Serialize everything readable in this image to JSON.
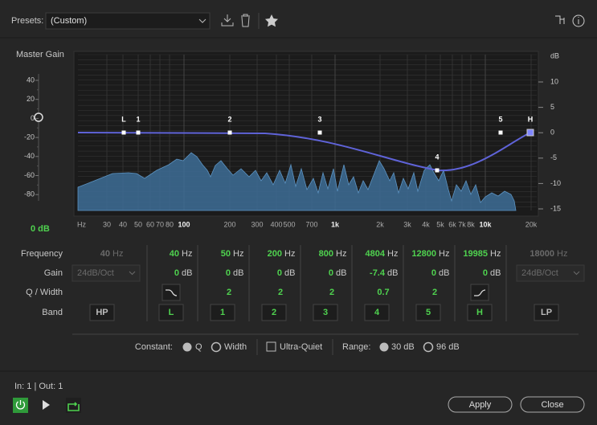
{
  "toolbar": {
    "presets_label": "Presets:",
    "preset": "(Custom)"
  },
  "master_gain": {
    "label": "Master Gain",
    "ticks": [
      40,
      20,
      0,
      -20,
      -40,
      -60,
      -80
    ],
    "value": "0 dB"
  },
  "graph": {
    "db_unit": "dB",
    "db_ticks": [
      10,
      5,
      0,
      -5,
      -10,
      -15
    ],
    "freq_labels": [
      "Hz",
      "30",
      "40",
      "50",
      "60",
      "70",
      "80",
      "100",
      "200",
      "300",
      "400",
      "500",
      "700",
      "1k",
      "2k",
      "3k",
      "4k",
      "5k",
      "6k",
      "7k",
      "8k",
      "10k",
      "20k"
    ],
    "band_markers": [
      "L",
      "1",
      "2",
      "3",
      "4",
      "5",
      "H"
    ]
  },
  "bands": {
    "row_labels": [
      "Frequency",
      "Gain",
      "Q / Width",
      "Band"
    ],
    "columns": [
      {
        "frequency": 40,
        "frequency_unit": "Hz",
        "gain": "24dB/Oct",
        "band": "HP"
      },
      {
        "frequency": 40,
        "frequency_unit": "Hz",
        "gain": 0,
        "gain_unit": "dB",
        "band": "L"
      },
      {
        "frequency": 50,
        "frequency_unit": "Hz",
        "gain": 0,
        "gain_unit": "dB",
        "q": 2,
        "band": "1"
      },
      {
        "frequency": 200,
        "frequency_unit": "Hz",
        "gain": 0,
        "gain_unit": "dB",
        "q": 2,
        "band": "2"
      },
      {
        "frequency": 800,
        "frequency_unit": "Hz",
        "gain": 0,
        "gain_unit": "dB",
        "q": 2,
        "band": "3"
      },
      {
        "frequency": 4804,
        "frequency_unit": "Hz",
        "gain": -7.4,
        "gain_unit": "dB",
        "q": 0.7,
        "band": "4"
      },
      {
        "frequency": 12800,
        "frequency_unit": "Hz",
        "gain": 0,
        "gain_unit": "dB",
        "q": 2,
        "band": "5"
      },
      {
        "frequency": 19985,
        "frequency_unit": "Hz",
        "gain": 0,
        "gain_unit": "dB",
        "band": "H"
      },
      {
        "frequency": 18000,
        "frequency_unit": "Hz",
        "gain": "24dB/Oct",
        "band": "LP"
      }
    ]
  },
  "options": {
    "constant_label": "Constant:",
    "q": "Q",
    "width": "Width",
    "ultra_quiet": "Ultra-Quiet",
    "range_label": "Range:",
    "range_30": "30 dB",
    "range_96": "96 dB"
  },
  "footer": {
    "io": "In: 1 | Out: 1",
    "apply": "Apply",
    "close": "Close"
  }
}
